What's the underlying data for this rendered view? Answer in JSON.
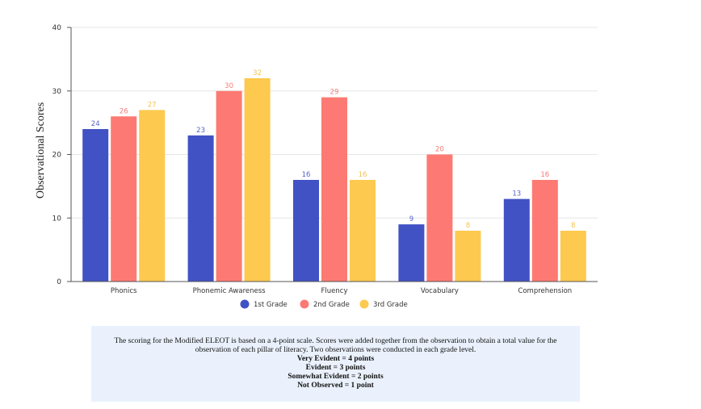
{
  "chart_data": {
    "type": "bar",
    "title": "",
    "xlabel": "",
    "ylabel": "Observational Scores",
    "ylim": [
      0,
      40
    ],
    "yticks": [
      0,
      10,
      20,
      30,
      40
    ],
    "grid": true,
    "legend_position": "bottom-center",
    "categories": [
      "Phonics",
      "Phonemic Awareness",
      "Fluency",
      "Vocabulary",
      "Comprehension"
    ],
    "series": [
      {
        "name": "1st Grade",
        "color": "#4152c4",
        "values": [
          24,
          23,
          16,
          9,
          13
        ]
      },
      {
        "name": "2nd Grade",
        "color": "#fc7a73",
        "values": [
          26,
          30,
          29,
          20,
          16
        ]
      },
      {
        "name": "3rd Grade",
        "color": "#fdc94f",
        "values": [
          27,
          32,
          16,
          8,
          8
        ]
      }
    ]
  },
  "note": {
    "paragraph": "The scoring for the Modified ELEOT is based on a 4-point scale. Scores were added together from the observation to obtain a total value for the observation of each pillar of literacy.  Two observations were conducted in each grade level.",
    "scale": [
      "Very Evident = 4 points",
      "Evident = 3 points",
      "Somewhat Evident = 2 points",
      "Not Observed = 1 point"
    ]
  }
}
